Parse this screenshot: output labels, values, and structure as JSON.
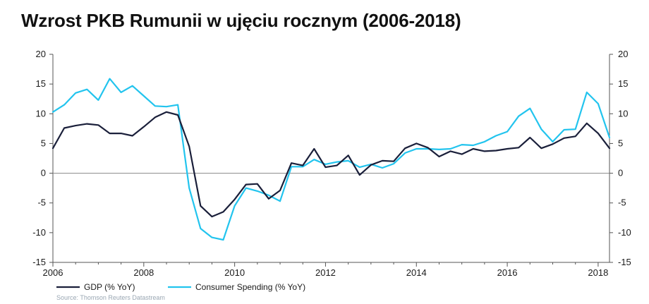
{
  "title": "Wzrost PKB Rumunii w ujęciu rocznym (2006-2018)",
  "source": "Source: Thomson Reuters Datastream",
  "colors": {
    "gdp": "#1a1f3a",
    "consumer": "#22c4ee",
    "axis": "#555555",
    "zero_line": "#888888"
  },
  "chart_data": {
    "type": "line",
    "title": "Wzrost PKB Rumunii w ujęciu rocznym (2006-2018)",
    "xlabel": "",
    "ylabel": "",
    "xlim": [
      2006,
      2018.25
    ],
    "ylim": [
      -15,
      20
    ],
    "grid": false,
    "legend_position": "bottom-left",
    "x_ticks": [
      "2006",
      "2008",
      "2010",
      "2012",
      "2014",
      "2016",
      "2018"
    ],
    "y_ticks": [
      "20",
      "15",
      "10",
      "5",
      "0",
      "-5",
      "-10",
      "-15"
    ],
    "x": [
      2006.0,
      2006.25,
      2006.5,
      2006.75,
      2007.0,
      2007.25,
      2007.5,
      2007.75,
      2008.0,
      2008.25,
      2008.5,
      2008.75,
      2009.0,
      2009.25,
      2009.5,
      2009.75,
      2010.0,
      2010.25,
      2010.5,
      2010.75,
      2011.0,
      2011.25,
      2011.5,
      2011.75,
      2012.0,
      2012.25,
      2012.5,
      2012.75,
      2013.0,
      2013.25,
      2013.5,
      2013.75,
      2014.0,
      2014.25,
      2014.5,
      2014.75,
      2015.0,
      2015.25,
      2015.5,
      2015.75,
      2016.0,
      2016.25,
      2016.5,
      2016.75,
      2017.0,
      2017.25,
      2017.5,
      2017.75,
      2018.0,
      2018.25
    ],
    "series": [
      {
        "name": "GDP (% YoY)",
        "values": [
          4.2,
          7.6,
          8.0,
          8.3,
          8.1,
          6.7,
          6.7,
          6.3,
          7.8,
          9.4,
          10.3,
          9.8,
          4.5,
          -5.5,
          -7.3,
          -6.5,
          -4.4,
          -1.9,
          -1.8,
          -4.3,
          -2.9,
          1.7,
          1.3,
          4.1,
          1.0,
          1.3,
          3.0,
          -0.3,
          1.4,
          2.1,
          2.0,
          4.2,
          5.0,
          4.3,
          2.8,
          3.7,
          3.2,
          4.1,
          3.7,
          3.8,
          4.1,
          4.3,
          6.0,
          4.2,
          4.9,
          5.9,
          6.2,
          8.4,
          6.7,
          4.2
        ]
      },
      {
        "name": "Consumer Spending (% YoY)",
        "values": [
          10.3,
          11.5,
          13.5,
          14.1,
          12.3,
          15.9,
          13.6,
          14.7,
          13.0,
          11.3,
          11.2,
          11.5,
          -2.5,
          -9.3,
          -10.8,
          -11.2,
          -5.5,
          -2.5,
          -3.0,
          -3.7,
          -4.7,
          1.1,
          1.1,
          2.3,
          1.5,
          1.9,
          2.1,
          1.0,
          1.5,
          0.9,
          1.6,
          3.4,
          4.1,
          4.1,
          4.0,
          4.1,
          4.8,
          4.7,
          5.3,
          6.3,
          7.0,
          9.6,
          10.9,
          7.4,
          5.3,
          7.3,
          7.4,
          13.6,
          11.7,
          6.0
        ]
      }
    ]
  }
}
